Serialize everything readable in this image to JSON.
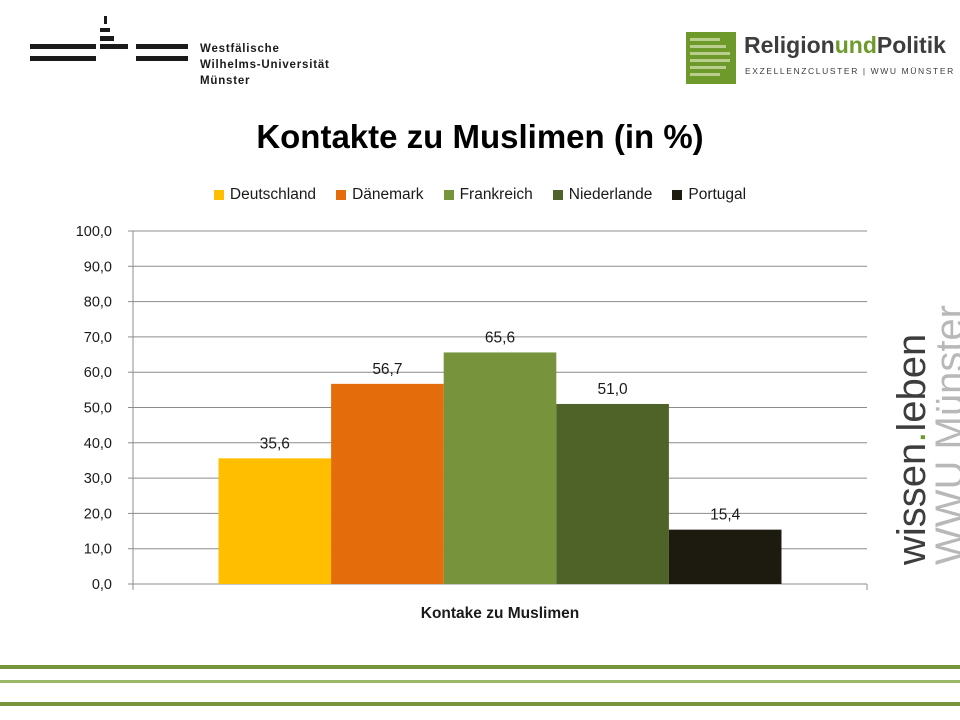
{
  "header": {
    "university_lines": [
      "Westfälische",
      "Wilhelms-Universität",
      "Münster"
    ],
    "rp_logo": {
      "part1": "Religion",
      "part2": "und",
      "part3": "Politik",
      "subtitle": "EXZELLENZCLUSTER | WWU MÜNSTER"
    }
  },
  "side_brand": {
    "word1": "wissen",
    "dot": ".",
    "word2": "leben",
    "line2": "WWU Münster"
  },
  "colors": {
    "rp_green": "#6e9a2c",
    "grid": "#8c8c8c"
  },
  "chart_data": {
    "type": "bar",
    "title": "Kontakte zu Muslimen (in %)",
    "xlabel": "Kontake zu Muslimen",
    "ylabel": "",
    "categories": [
      "Kontake zu Muslimen"
    ],
    "series": [
      {
        "name": "Deutschland",
        "values": [
          35.6
        ],
        "color": "#ffbf00",
        "label": "35,6"
      },
      {
        "name": "Dänemark",
        "values": [
          56.7
        ],
        "color": "#e46c0a",
        "label": "56,7"
      },
      {
        "name": "Frankreich",
        "values": [
          65.6
        ],
        "color": "#77933c",
        "label": "65,6"
      },
      {
        "name": "Niederlande",
        "values": [
          51.0
        ],
        "color": "#4f6228",
        "label": "51,0"
      },
      {
        "name": "Portugal",
        "values": [
          15.4
        ],
        "color": "#1d1b10",
        "label": "15,4"
      }
    ],
    "ylim": [
      0,
      100
    ],
    "yticks": [
      "0,0",
      "10,0",
      "20,0",
      "30,0",
      "40,0",
      "50,0",
      "60,0",
      "70,0",
      "80,0",
      "90,0",
      "100,0"
    ],
    "grid": true,
    "legend_position": "top"
  }
}
